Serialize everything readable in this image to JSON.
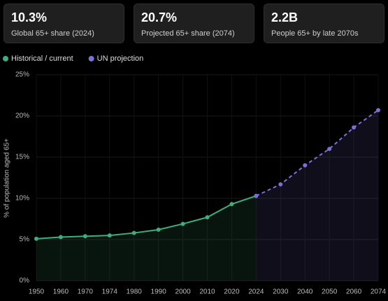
{
  "cards": [
    {
      "value": "10.3%",
      "label": "Global 65+ share (2024)"
    },
    {
      "value": "20.7%",
      "label": "Projected 65+ share (2074)"
    },
    {
      "value": "2.2B",
      "label": "People 65+ by late 2070s"
    }
  ],
  "chart_data": {
    "type": "line",
    "y_label": "% of population aged 65+",
    "categories": [
      "1950",
      "1960",
      "1970",
      "1974",
      "1980",
      "1990",
      "2000",
      "2010",
      "2020",
      "2024",
      "2030",
      "2040",
      "2050",
      "2060",
      "2074"
    ],
    "series": [
      {
        "name": "Historical / current",
        "color": "#3fae7c",
        "dashed": false,
        "values": [
          5.1,
          5.3,
          5.4,
          5.5,
          5.8,
          6.2,
          6.9,
          7.7,
          9.3,
          10.3,
          null,
          null,
          null,
          null,
          null
        ]
      },
      {
        "name": "UN projection",
        "color": "#7b70d8",
        "dashed": true,
        "values": [
          null,
          null,
          null,
          null,
          null,
          null,
          null,
          null,
          null,
          10.3,
          11.7,
          14.0,
          16.0,
          18.6,
          20.7
        ]
      }
    ],
    "ylim": [
      0,
      25
    ],
    "yticks": [
      {
        "value": 0,
        "label": "0%"
      },
      {
        "value": 5,
        "label": "5%"
      },
      {
        "value": 10,
        "label": "10%"
      },
      {
        "value": 15,
        "label": "15%"
      },
      {
        "value": 20,
        "label": "20%"
      },
      {
        "value": 25,
        "label": "25%"
      }
    ],
    "grid": true
  }
}
